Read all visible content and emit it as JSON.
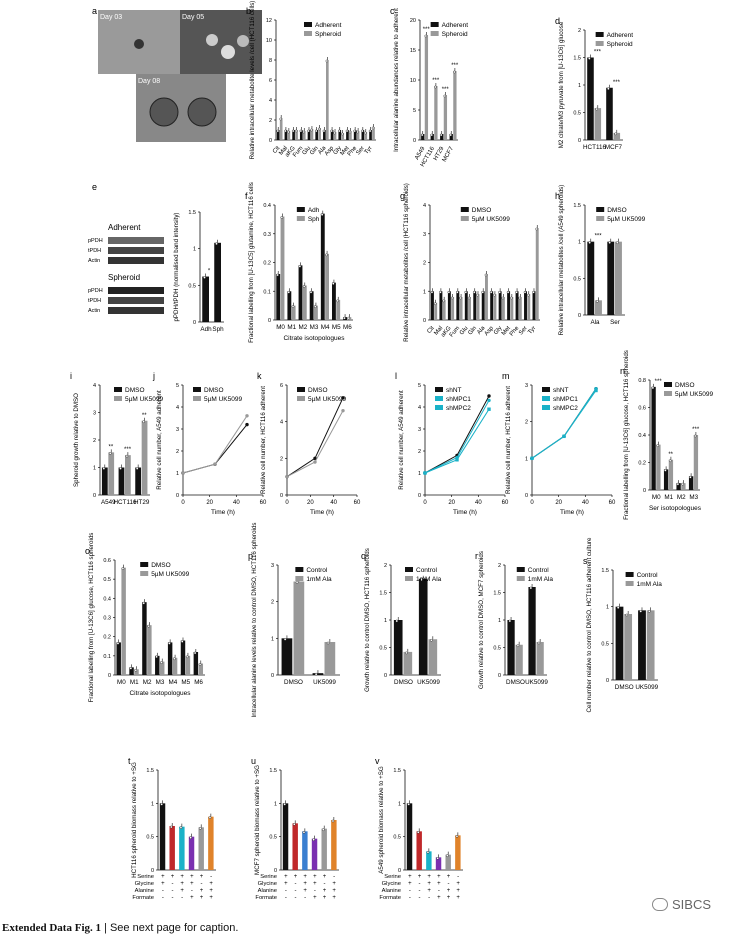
{
  "colors": {
    "black": "#111111",
    "grey": "#999999",
    "cyan": "#1ab2c8",
    "red": "#c0282a",
    "blue": "#3a7fd0",
    "purple": "#7a2fb0",
    "orange": "#e0832a"
  },
  "caption": {
    "bold": "Extended Data Fig. 1",
    "rest": " | See next page for caption."
  },
  "watermark": "SIBCS",
  "panel_a": {
    "letter": "a",
    "day1": "Day 03",
    "day2": "Day 05",
    "day3": "Day 08"
  },
  "panel_e": {
    "letter": "e",
    "adherent": "Adherent",
    "spheroid": "Spheroid",
    "rows": [
      "pPDH",
      "tPDH",
      "Actin"
    ]
  },
  "chart_data": [
    {
      "id": "b",
      "letter": "b",
      "type": "bar",
      "ylabel": "Relative intracellular metabolite levels /cell (HCT116 cells)",
      "categories": [
        "Cit",
        "Mal",
        "aKG",
        "Fum",
        "Glu",
        "Gln",
        "Ala",
        "Asp",
        "Gly",
        "Met",
        "Phe",
        "Ser",
        "Tyr"
      ],
      "series": [
        {
          "name": "Adherent",
          "values": [
            1,
            1,
            1,
            1,
            1,
            1,
            1,
            1,
            1,
            1,
            1,
            1,
            1
          ]
        },
        {
          "name": "Spheroid",
          "values": [
            2.2,
            0.9,
            1,
            0.9,
            1.1,
            1.2,
            8,
            0.8,
            0.7,
            0.9,
            0.9,
            0.8,
            1.3
          ]
        }
      ],
      "ylim": [
        0,
        12
      ],
      "yticks": [
        0,
        2,
        4,
        6,
        8,
        10,
        12
      ],
      "legend": [
        "Adherent",
        "Spheroid"
      ]
    },
    {
      "id": "c",
      "letter": "c",
      "type": "bar",
      "ylabel": "Intracellular alanine abundances relative to adherent",
      "categories": [
        "A549",
        "HCT116",
        "HT29",
        "MCF7"
      ],
      "series": [
        {
          "name": "Adherent",
          "values": [
            1,
            1,
            1,
            1
          ]
        },
        {
          "name": "Spheroid",
          "values": [
            17.5,
            9,
            7.5,
            11.5
          ]
        }
      ],
      "ylim": [
        0,
        20
      ],
      "yticks": [
        0,
        5,
        10,
        15,
        20
      ],
      "legend": [
        "Adherent",
        "Spheroid"
      ],
      "stars": [
        "***",
        "***",
        "***",
        "***"
      ]
    },
    {
      "id": "d",
      "letter": "d",
      "type": "bar",
      "ylabel": "M2 citrate/M3 pyruvate from [U-13C6] glucose",
      "categories": [
        "HCT116",
        "MCF7"
      ],
      "series": [
        {
          "name": "Adherent",
          "values": [
            1.5,
            0.95
          ]
        },
        {
          "name": "Spheroid",
          "values": [
            0.58,
            0.13
          ]
        }
      ],
      "ylim": [
        0,
        2
      ],
      "yticks": [
        0,
        0.5,
        1.0,
        1.5,
        2.0
      ],
      "legend": [
        "Adherent",
        "Spheroid"
      ],
      "stars": [
        "***",
        "***"
      ]
    },
    {
      "id": "e2",
      "letter": "",
      "type": "bar",
      "ylabel": "pPDH/tPDH (normalised band intensity)",
      "categories": [
        "Adh",
        "Sph"
      ],
      "series": [
        {
          "name": "",
          "values": [
            0.62,
            1.08
          ]
        }
      ],
      "ylim": [
        0,
        1.5
      ],
      "yticks": [
        0,
        0.5,
        1.0,
        1.5
      ],
      "legend": [],
      "stars": [
        "*"
      ]
    },
    {
      "id": "f",
      "letter": "f",
      "type": "bar",
      "ylabel": "Fractional labelling from [U-13C5] glutamine, HCT116 cells",
      "xlabel": "Citrate isotopologues",
      "categories": [
        "M0",
        "M1",
        "M2",
        "M3",
        "M4",
        "M5",
        "M6"
      ],
      "series": [
        {
          "name": "Adh",
          "values": [
            0.16,
            0.1,
            0.19,
            0.1,
            0.37,
            0.13,
            0.01
          ]
        },
        {
          "name": "Sph",
          "values": [
            0.36,
            0.05,
            0.12,
            0.05,
            0.23,
            0.07,
            0.01
          ]
        }
      ],
      "ylim": [
        0,
        0.4
      ],
      "yticks": [
        0,
        0.1,
        0.2,
        0.3,
        0.4
      ],
      "legend": [
        "Adh",
        "Sph"
      ]
    },
    {
      "id": "g",
      "letter": "g",
      "type": "bar",
      "ylabel": "Relative intracellular metabolites /cell (HCT116 spheroids)",
      "categories": [
        "Cit",
        "Mal",
        "aKG",
        "Fum",
        "Glu",
        "Gln",
        "Ala",
        "Asp",
        "Gly",
        "Met",
        "Phe",
        "Ser",
        "Tyr"
      ],
      "series": [
        {
          "name": "DMSO",
          "values": [
            1,
            1,
            1,
            1,
            1,
            1,
            1,
            1,
            1,
            1,
            1,
            1,
            1
          ]
        },
        {
          "name": "5µM UK5099",
          "values": [
            0.6,
            0.7,
            0.8,
            0.8,
            0.8,
            0.9,
            1.6,
            0.9,
            0.8,
            0.8,
            0.8,
            0.9,
            3.2
          ]
        }
      ],
      "ylim": [
        0,
        4
      ],
      "yticks": [
        0,
        1,
        2,
        3,
        4
      ],
      "legend": [
        "DMSO",
        "5µM UK5099"
      ]
    },
    {
      "id": "h",
      "letter": "h",
      "type": "bar",
      "ylabel": "Relative intracellular metabolites /cell (A549 spheroids)",
      "categories": [
        "Ala",
        "Ser"
      ],
      "series": [
        {
          "name": "DMSO",
          "values": [
            1,
            1
          ]
        },
        {
          "name": "5µM UK5099",
          "values": [
            0.2,
            1
          ]
        }
      ],
      "ylim": [
        0,
        1.5
      ],
      "yticks": [
        0,
        0.5,
        1.0,
        1.5
      ],
      "legend": [
        "DMSO",
        "5µM UK5099"
      ],
      "stars": [
        "***",
        ""
      ]
    },
    {
      "id": "i",
      "letter": "i",
      "type": "bar",
      "ylabel": "Spheroid growth relative to DMSO",
      "categories": [
        "A549",
        "HCT116",
        "HT29"
      ],
      "series": [
        {
          "name": "DMSO",
          "values": [
            1,
            1,
            1
          ]
        },
        {
          "name": "5µM UK5099",
          "values": [
            1.55,
            1.45,
            2.7
          ]
        }
      ],
      "ylim": [
        0,
        4
      ],
      "yticks": [
        0,
        1,
        2,
        3,
        4
      ],
      "legend": [
        "DMSO",
        "5µM UK5099"
      ],
      "stars": [
        "**",
        "***",
        "**"
      ]
    },
    {
      "id": "j",
      "letter": "j",
      "type": "line",
      "ylabel": "Relative cell number, A549 adherent",
      "xlabel": "Time (h)",
      "x": [
        0,
        24,
        48
      ],
      "series": [
        {
          "name": "DMSO",
          "values": [
            1,
            1.4,
            3.2
          ]
        },
        {
          "name": "5µM UK5099",
          "values": [
            1,
            1.4,
            3.6
          ]
        }
      ],
      "ylim": [
        0,
        5
      ],
      "yticks": [
        0,
        1,
        2,
        3,
        4,
        5
      ],
      "xlim": [
        0,
        60
      ],
      "xticks": [
        0,
        20,
        40,
        60
      ],
      "legend": [
        "DMSO",
        "5µM UK5099"
      ]
    },
    {
      "id": "k",
      "letter": "k",
      "type": "line",
      "ylabel": "Relative cell number, HCT116 adherent",
      "xlabel": "Time (h)",
      "x": [
        0,
        24,
        48
      ],
      "series": [
        {
          "name": "DMSO",
          "values": [
            1,
            2,
            5.3
          ]
        },
        {
          "name": "5µM UK5099",
          "values": [
            1,
            1.8,
            4.6
          ]
        }
      ],
      "ylim": [
        0,
        6
      ],
      "yticks": [
        0,
        2,
        4,
        6
      ],
      "xlim": [
        0,
        60
      ],
      "xticks": [
        0,
        20,
        40,
        60
      ],
      "legend": [
        "DMSO",
        "5µM UK5099"
      ]
    },
    {
      "id": "l",
      "letter": "l",
      "type": "line",
      "ylabel": "Relative cell number, A549 adherent",
      "xlabel": "Time (h)",
      "x": [
        0,
        24,
        48
      ],
      "series": [
        {
          "name": "shNT",
          "values": [
            1,
            1.8,
            4.5
          ]
        },
        {
          "name": "shMPC1",
          "values": [
            1,
            1.7,
            4.3
          ]
        },
        {
          "name": "shMPC2",
          "values": [
            1,
            1.6,
            3.9
          ]
        }
      ],
      "ylim": [
        0,
        5
      ],
      "yticks": [
        0,
        1,
        2,
        3,
        4,
        5
      ],
      "xlim": [
        0,
        60
      ],
      "xticks": [
        0,
        20,
        40,
        60
      ],
      "legend": [
        "shNT",
        "shMPC1",
        "shMPC2"
      ]
    },
    {
      "id": "m",
      "letter": "m",
      "type": "line",
      "ylabel": "Relative cell number, HCT116 adherent",
      "xlabel": "Time (h)",
      "x": [
        0,
        24,
        48
      ],
      "series": [
        {
          "name": "shNT",
          "values": [
            1,
            1.6,
            2.9
          ]
        },
        {
          "name": "shMPC1",
          "values": [
            1,
            1.6,
            2.9
          ]
        },
        {
          "name": "shMPC2",
          "values": [
            1,
            1.6,
            2.85
          ]
        }
      ],
      "ylim": [
        0,
        3
      ],
      "yticks": [
        0,
        1,
        2,
        3
      ],
      "xlim": [
        0,
        60
      ],
      "xticks": [
        0,
        20,
        40,
        60
      ],
      "legend": [
        "shNT",
        "shMPC1",
        "shMPC2"
      ]
    },
    {
      "id": "n",
      "letter": "n",
      "type": "bar",
      "ylabel": "Fractional labelling from [U-13C6] glucose, HCT116 spheroids",
      "xlabel": "Ser isotopologues",
      "categories": [
        "M0",
        "M1",
        "M2",
        "M3"
      ],
      "series": [
        {
          "name": "DMSO",
          "values": [
            0.75,
            0.15,
            0.05,
            0.1
          ]
        },
        {
          "name": "5µM UK5099",
          "values": [
            0.33,
            0.22,
            0.05,
            0.4
          ]
        }
      ],
      "ylim": [
        0,
        0.8
      ],
      "yticks": [
        0,
        0.2,
        0.4,
        0.6,
        0.8
      ],
      "legend": [
        "DMSO",
        "5µM UK5099"
      ],
      "stars": [
        "***",
        "**",
        "",
        "***"
      ]
    },
    {
      "id": "o",
      "letter": "o",
      "type": "bar",
      "ylabel": "Fractional labelling from [U-13C6] glucose, HCT116 spheroids",
      "xlabel": "Citrate isotopologues",
      "categories": [
        "M0",
        "M1",
        "M2",
        "M3",
        "M4",
        "M5",
        "M6"
      ],
      "series": [
        {
          "name": "DMSO",
          "values": [
            0.17,
            0.04,
            0.38,
            0.1,
            0.17,
            0.18,
            0.12
          ]
        },
        {
          "name": "5µM UK5099",
          "values": [
            0.56,
            0.03,
            0.26,
            0.07,
            0.09,
            0.1,
            0.06
          ]
        }
      ],
      "ylim": [
        0,
        0.6
      ],
      "yticks": [
        0,
        0.1,
        0.2,
        0.3,
        0.4,
        0.5,
        0.6
      ],
      "legend": [
        "DMSO",
        "5µM UK5099"
      ]
    },
    {
      "id": "p",
      "letter": "p",
      "type": "bar",
      "ylabel": "Intracellular alanine levels relative to control DMSO, HCT116 spheroids",
      "categories": [
        "DMSO",
        "UK5099"
      ],
      "series": [
        {
          "name": "Control",
          "values": [
            1,
            0.05
          ]
        },
        {
          "name": "1mM Ala",
          "values": [
            2.55,
            0.9
          ]
        }
      ],
      "ylim": [
        0,
        3
      ],
      "yticks": [
        0,
        1,
        2,
        3
      ],
      "legend": [
        "Control",
        "1mM Ala"
      ]
    },
    {
      "id": "q",
      "letter": "q",
      "type": "bar",
      "ylabel": "Growth relative to control DMSO, HCT116 spheroids",
      "categories": [
        "DMSO",
        "UK5099"
      ],
      "series": [
        {
          "name": "Control",
          "values": [
            1,
            1.75
          ]
        },
        {
          "name": "1mM Ala",
          "values": [
            0.42,
            0.65
          ]
        }
      ],
      "ylim": [
        0,
        2
      ],
      "yticks": [
        0,
        0.5,
        1.0,
        1.5,
        2.0
      ],
      "legend": [
        "Control",
        "1mM Ala"
      ]
    },
    {
      "id": "r",
      "letter": "r",
      "type": "bar",
      "ylabel": "Growth relative to control DMSO, MCF7 spheroids",
      "categories": [
        "DMSO",
        "UK5099"
      ],
      "series": [
        {
          "name": "Control",
          "values": [
            1,
            1.6
          ]
        },
        {
          "name": "1mM Ala",
          "values": [
            0.55,
            0.6
          ]
        }
      ],
      "ylim": [
        0,
        2
      ],
      "yticks": [
        0,
        0.5,
        1.0,
        1.5,
        2.0
      ],
      "legend": [
        "Control",
        "1mM Ala"
      ]
    },
    {
      "id": "s",
      "letter": "s",
      "type": "bar",
      "ylabel": "Cell number relative to control DMSO, HCT116 adherent culture",
      "categories": [
        "DMSO",
        "UK5099"
      ],
      "series": [
        {
          "name": "Control",
          "values": [
            1,
            0.95
          ]
        },
        {
          "name": "1mM Ala",
          "values": [
            0.9,
            0.95
          ]
        }
      ],
      "ylim": [
        0,
        1.5
      ],
      "yticks": [
        0,
        0.5,
        1.0,
        1.5
      ],
      "legend": [
        "Control",
        "1mM Ala"
      ]
    },
    {
      "id": "t",
      "letter": "t",
      "type": "bar",
      "ylabel": "HCT116 spheroid biomass relative to +SG",
      "categories": [
        "1",
        "2",
        "3",
        "4",
        "5",
        "6"
      ],
      "series": [
        {
          "name": "",
          "values": [
            1,
            0.66,
            0.65,
            0.5,
            0.64,
            0.8
          ]
        }
      ],
      "ylim": [
        0,
        1.5
      ],
      "yticks": [
        0,
        0.5,
        1.0,
        1.5
      ],
      "legend": [],
      "conditions": {
        "Serine": [
          "+",
          "+",
          "+",
          "+",
          "+",
          "-"
        ],
        "Glycine": [
          "+",
          "-",
          "+",
          "+",
          "-",
          "+"
        ],
        "Alanine": [
          "-",
          "-",
          "+",
          "-",
          "+",
          "+"
        ],
        "Formate": [
          "-",
          "-",
          "-",
          "+",
          "+",
          "+"
        ]
      }
    },
    {
      "id": "u",
      "letter": "u",
      "type": "bar",
      "ylabel": "MCF7 spheroid biomass relative to +SG",
      "categories": [
        "1",
        "2",
        "3",
        "4",
        "5",
        "6"
      ],
      "series": [
        {
          "name": "",
          "values": [
            1,
            0.7,
            0.58,
            0.47,
            0.62,
            0.75
          ]
        }
      ],
      "ylim": [
        0,
        1.5
      ],
      "yticks": [
        0,
        0.5,
        1.0,
        1.5
      ],
      "legend": [],
      "conditions": {
        "Serine": [
          "+",
          "+",
          "+",
          "+",
          "+",
          "-"
        ],
        "Glycine": [
          "+",
          "-",
          "+",
          "+",
          "-",
          "+"
        ],
        "Alanine": [
          "-",
          "-",
          "+",
          "-",
          "+",
          "+"
        ],
        "Formate": [
          "-",
          "-",
          "-",
          "+",
          "+",
          "+"
        ]
      }
    },
    {
      "id": "v",
      "letter": "v",
      "type": "bar",
      "ylabel": "A549 spheroid biomass relative to +SG",
      "categories": [
        "1",
        "2",
        "3",
        "4",
        "5",
        "6"
      ],
      "series": [
        {
          "name": "",
          "values": [
            1,
            0.58,
            0.28,
            0.19,
            0.23,
            0.52
          ]
        }
      ],
      "ylim": [
        0,
        1.5
      ],
      "yticks": [
        0,
        0.5,
        1.0,
        1.5
      ],
      "legend": [],
      "conditions": {
        "Serine": [
          "+",
          "+",
          "+",
          "+",
          "+",
          "-"
        ],
        "Glycine": [
          "+",
          "-",
          "+",
          "+",
          "-",
          "+"
        ],
        "Alanine": [
          "-",
          "-",
          "+",
          "-",
          "+",
          "+"
        ],
        "Formate": [
          "-",
          "-",
          "-",
          "+",
          "+",
          "+"
        ]
      }
    }
  ]
}
